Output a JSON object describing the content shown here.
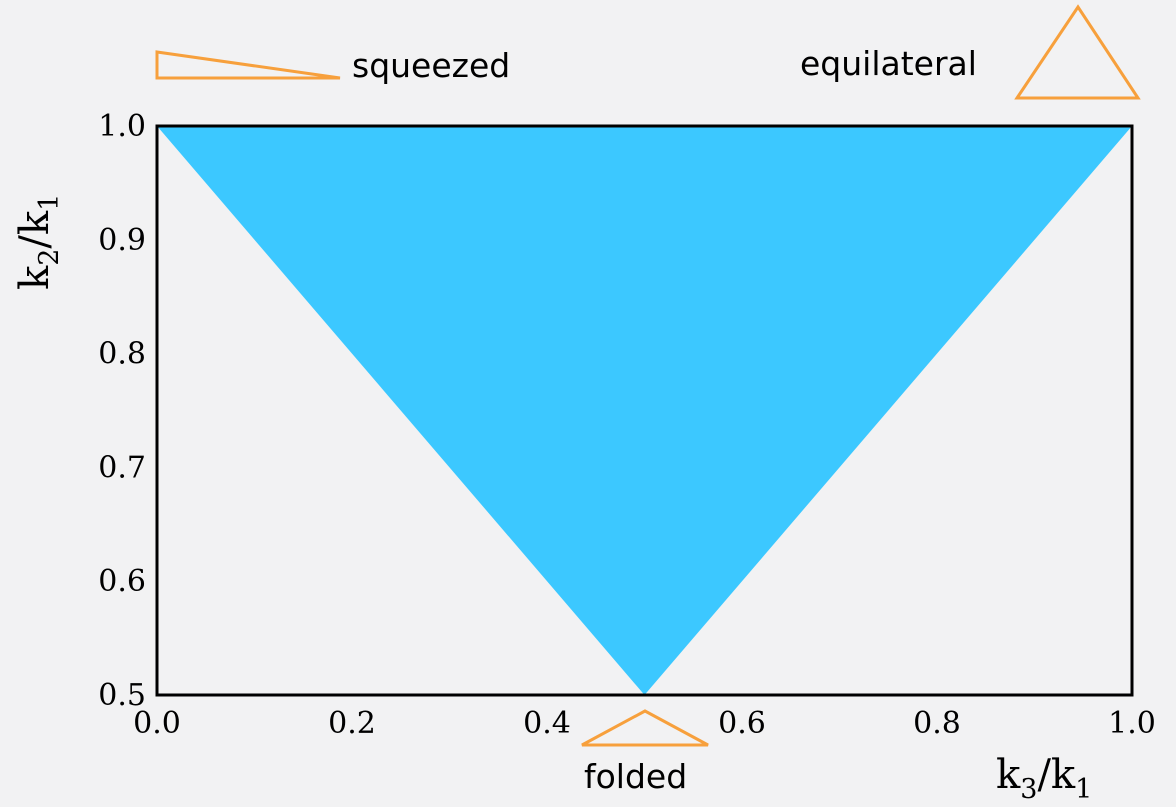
{
  "chart_data": {
    "type": "area",
    "xlim": [
      0.0,
      1.0
    ],
    "ylim": [
      0.5,
      1.0
    ],
    "x_ticks": [
      "0.0",
      "0.2",
      "0.4",
      "0.6",
      "0.8",
      "1.0"
    ],
    "y_ticks": [
      "0.5",
      "0.6",
      "0.7",
      "0.8",
      "0.9",
      "1.0"
    ],
    "x_label": {
      "base1": "k",
      "sub1": "3",
      "sep": "/",
      "base2": "k",
      "sub2": "1"
    },
    "y_label": {
      "base1": "k",
      "sub1": "2",
      "sep": "/",
      "base2": "k",
      "sub2": "1"
    },
    "region": {
      "points": [
        {
          "x": 0.0,
          "y": 1.0
        },
        {
          "x": 1.0,
          "y": 1.0
        },
        {
          "x": 0.5,
          "y": 0.5
        }
      ],
      "color": "#3cc8ff"
    },
    "grid": false,
    "annotations": [
      {
        "text": "squeezed",
        "icon": "squeezed-triangle-icon"
      },
      {
        "text": "equilateral",
        "icon": "equilateral-triangle-icon"
      },
      {
        "text": "folded",
        "icon": "folded-triangle-icon"
      }
    ],
    "annotation_color": "#f7a03c"
  }
}
